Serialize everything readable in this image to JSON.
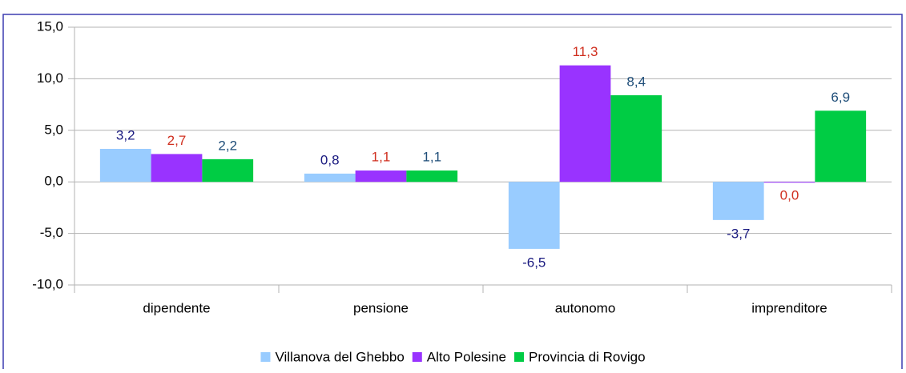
{
  "chart_data": {
    "type": "bar",
    "categories": [
      "dipendente",
      "pensione",
      "autonomo",
      "imprenditore"
    ],
    "series": [
      {
        "name": "Villanova del Ghebbo",
        "color": "#99ccff",
        "label_color": "#1a1a80",
        "values": [
          3.2,
          0.8,
          -6.5,
          -3.7
        ],
        "value_labels": [
          "3,2",
          "0,8",
          "-6,5",
          "-3,7"
        ]
      },
      {
        "name": "Alto Polesine",
        "color": "#9933ff",
        "label_color": "#d03020",
        "values": [
          2.7,
          1.1,
          11.3,
          0.0
        ],
        "value_labels": [
          "2,7",
          "1,1",
          "11,3",
          "0,0"
        ]
      },
      {
        "name": "Provincia di Rovigo",
        "color": "#00cc44",
        "label_color": "#1f4e79",
        "values": [
          2.2,
          1.1,
          8.4,
          6.9
        ],
        "value_labels": [
          "2,2",
          "1,1",
          "8,4",
          "6,9"
        ]
      }
    ],
    "ylim": [
      -10,
      15
    ],
    "yticks": [
      {
        "value": -10,
        "label": "-10,0"
      },
      {
        "value": -5,
        "label": "-5,0"
      },
      {
        "value": 0,
        "label": "0,0"
      },
      {
        "value": 5,
        "label": "5,0"
      },
      {
        "value": 10,
        "label": "10,0"
      },
      {
        "value": 15,
        "label": "15,0"
      }
    ],
    "grid": true,
    "legend": "bottom"
  }
}
